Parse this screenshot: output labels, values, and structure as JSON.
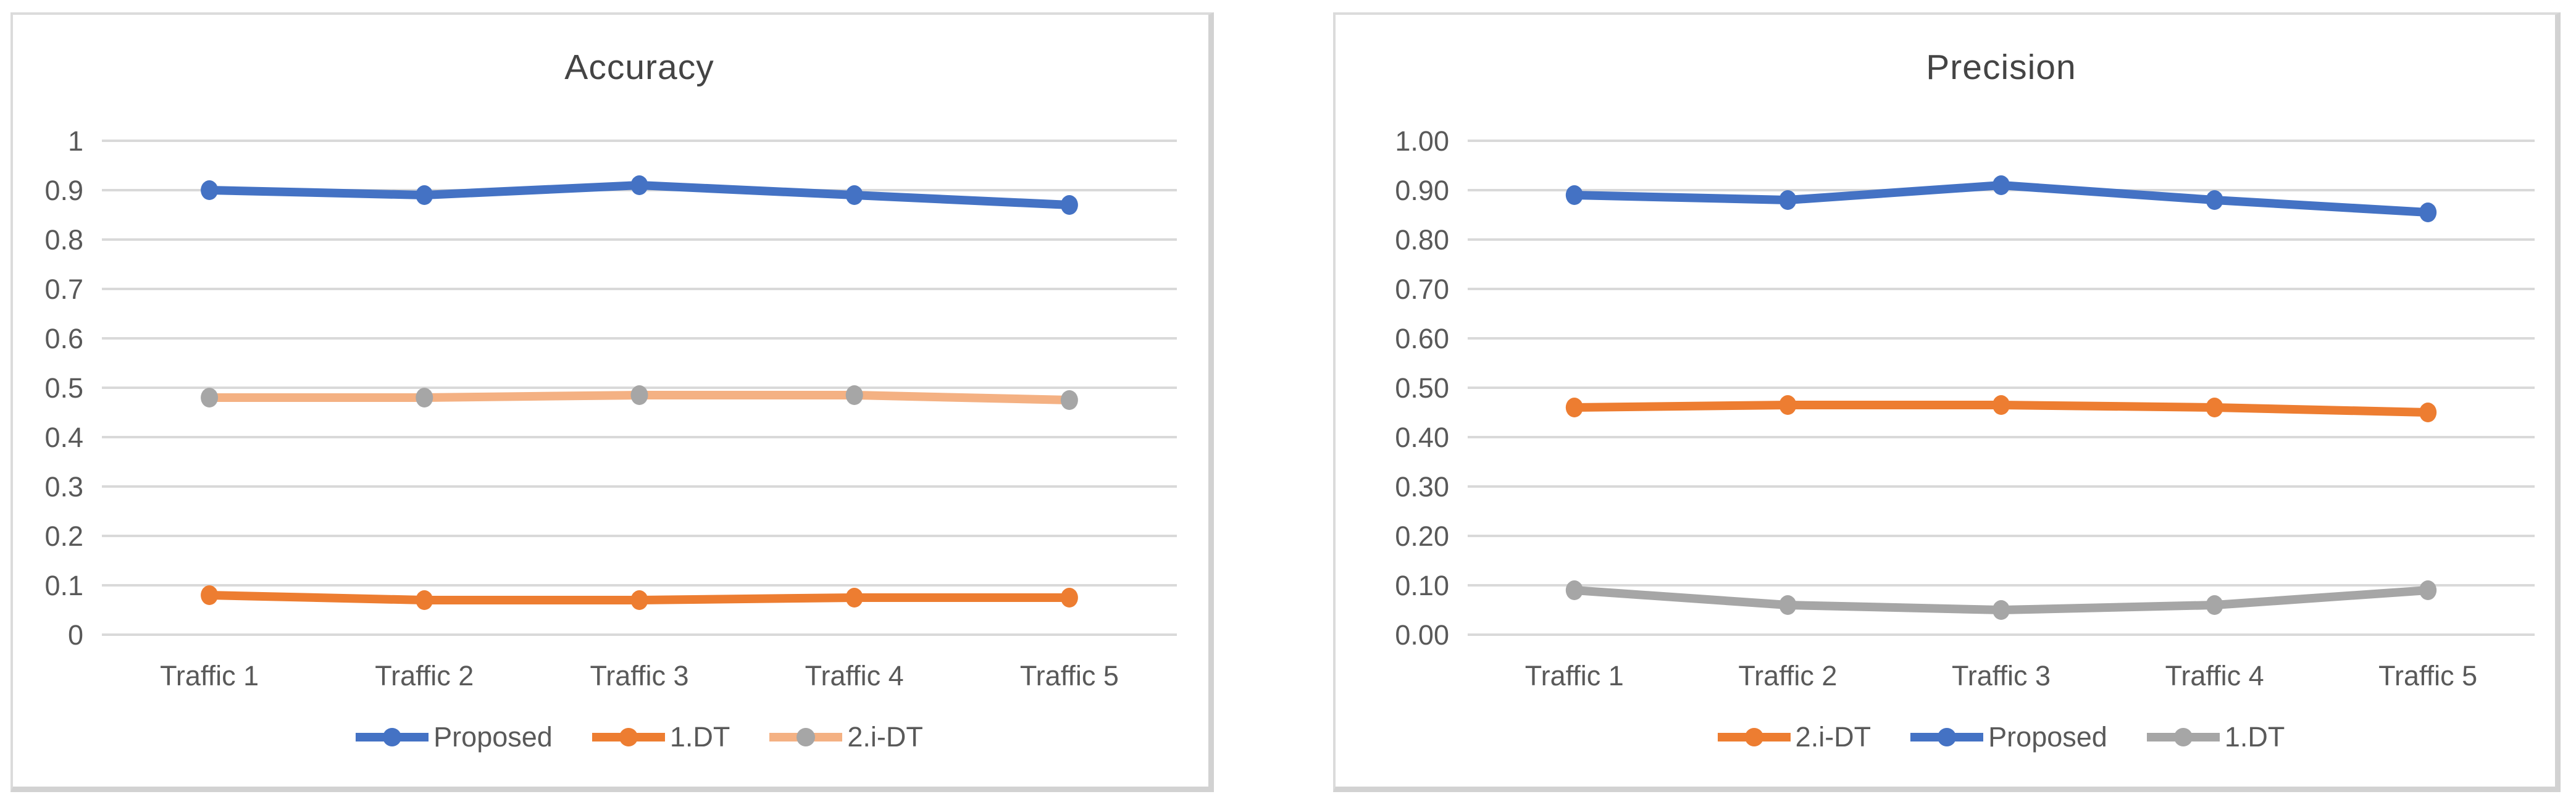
{
  "page": {
    "background": "#ffffff",
    "gridline_color": "#d9d9d9",
    "axis_label_color": "#595959",
    "title_color": "#444444"
  },
  "chart_data": [
    {
      "type": "line",
      "title": "Accuracy",
      "xlabel": "",
      "ylabel": "",
      "categories": [
        "Traffic 1",
        "Traffic 2",
        "Traffic 3",
        "Traffic 4",
        "Traffic 5"
      ],
      "y_ticks": [
        "1",
        "0.9",
        "0.8",
        "0.7",
        "0.6",
        "0.5",
        "0.4",
        "0.3",
        "0.2",
        "0.1",
        "0"
      ],
      "ylim": [
        0,
        1
      ],
      "grid": true,
      "legend_position": "bottom",
      "series": [
        {
          "name": "Proposed",
          "line_color": "#4472C4",
          "marker_color": "#4472C4",
          "values": [
            0.9,
            0.89,
            0.91,
            0.89,
            0.87
          ]
        },
        {
          "name": "1.DT",
          "line_color": "#ED7D31",
          "marker_color": "#ED7D31",
          "values": [
            0.08,
            0.07,
            0.07,
            0.075,
            0.075
          ]
        },
        {
          "name": "2.i-DT",
          "line_color": "#F4B183",
          "marker_color": "#A6A6A6",
          "values": [
            0.48,
            0.48,
            0.485,
            0.485,
            0.475
          ]
        }
      ]
    },
    {
      "type": "line",
      "title": "Precision",
      "xlabel": "",
      "ylabel": "",
      "categories": [
        "Traffic 1",
        "Traffic 2",
        "Traffic 3",
        "Traffic 4",
        "Traffic 5"
      ],
      "y_ticks": [
        "1.00",
        "0.90",
        "0.80",
        "0.70",
        "0.60",
        "0.50",
        "0.40",
        "0.30",
        "0.20",
        "0.10",
        "0.00"
      ],
      "ylim": [
        0,
        1
      ],
      "grid": true,
      "legend_position": "bottom",
      "series": [
        {
          "name": "2.i-DT",
          "line_color": "#ED7D31",
          "marker_color": "#ED7D31",
          "values": [
            0.46,
            0.465,
            0.465,
            0.46,
            0.45
          ]
        },
        {
          "name": "Proposed",
          "line_color": "#4472C4",
          "marker_color": "#4472C4",
          "values": [
            0.89,
            0.88,
            0.91,
            0.88,
            0.855
          ]
        },
        {
          "name": "1.DT",
          "line_color": "#A6A6A6",
          "marker_color": "#A6A6A6",
          "values": [
            0.09,
            0.06,
            0.05,
            0.06,
            0.09
          ]
        }
      ]
    }
  ]
}
